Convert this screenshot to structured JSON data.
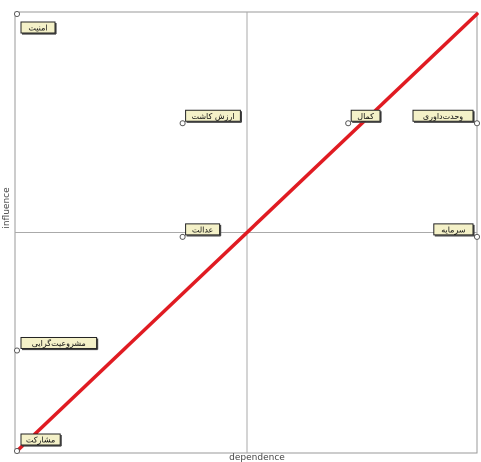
{
  "chart_data": {
    "type": "scatter",
    "title": "",
    "xlabel": "dependence",
    "ylabel": "influence",
    "xlim": [
      0,
      10
    ],
    "ylim": [
      0,
      10
    ],
    "grid": false,
    "divider_lines": {
      "x": 5,
      "y": 5
    },
    "points": [
      {
        "label": "امنیت",
        "x": 0.0,
        "y": 10.0
      },
      {
        "label": "ارزش کاشت",
        "x": 3.6,
        "y": 7.5
      },
      {
        "label": "کمال",
        "x": 7.2,
        "y": 7.5
      },
      {
        "label": "وحدت‌داوری",
        "x": 10.0,
        "y": 7.5
      },
      {
        "label": "عدالت",
        "x": 3.6,
        "y": 4.9
      },
      {
        "label": "سرمایه",
        "x": 10.0,
        "y": 4.9
      },
      {
        "label": "مشروعیت‌گرایی",
        "x": 0.0,
        "y": 2.3
      },
      {
        "label": "مشارکت",
        "x": 0.0,
        "y": 0.0
      }
    ],
    "reference_line": {
      "from": [
        0,
        0
      ],
      "to": [
        10,
        10
      ]
    },
    "colors": {
      "frame": "#999999",
      "divider": "#aaaaaa",
      "reference_line": "#e01b22",
      "label_bg": "#f4f1c8",
      "label_border": "#222222",
      "marker": "#555555"
    }
  }
}
